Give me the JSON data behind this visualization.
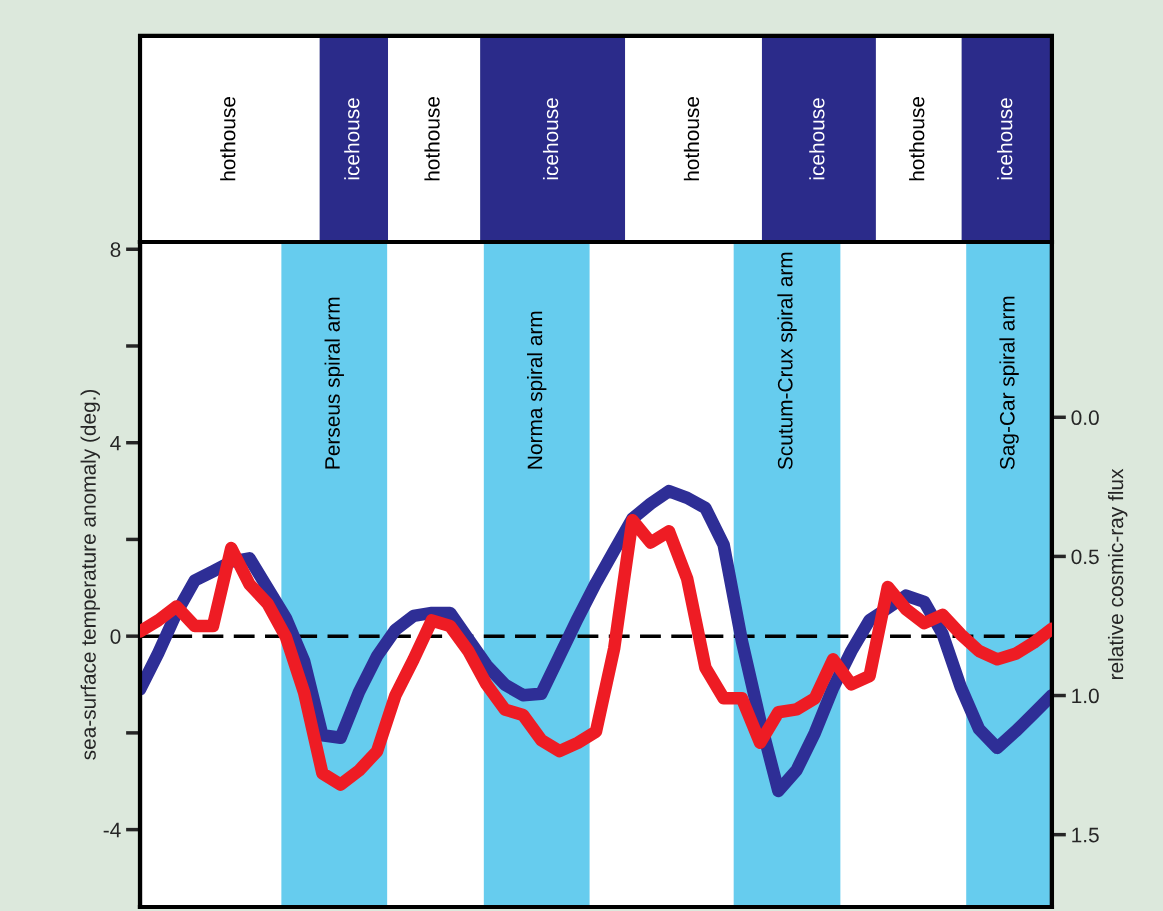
{
  "chart_data": {
    "type": "line",
    "ylabel": "sea-surface temperature anomaly (deg.)",
    "y2label": "relative cosmic-ray flux",
    "categories": [
      null,
      null,
      null,
      null,
      null,
      null,
      null,
      null,
      null,
      null,
      null,
      null,
      null,
      null,
      null,
      null,
      null,
      null,
      null,
      null,
      null,
      null,
      null,
      null,
      null,
      null,
      null,
      null,
      null,
      null,
      null,
      null,
      null,
      null,
      null,
      null,
      null,
      null,
      null,
      null,
      null,
      null,
      null,
      null,
      null,
      null,
      null,
      null,
      null,
      null,
      null
    ],
    "ylim": [
      -5.6,
      8.15
    ],
    "yticks": [
      -4,
      {
        "value": -2,
        "label": null
      },
      0,
      {
        "value": 2,
        "label": null
      },
      4,
      {
        "value": 6,
        "label": null
      },
      8
    ],
    "y2lim": [
      1.76,
      -0.63
    ],
    "y2ticks": [
      {
        "value": 0,
        "label": "0.0"
      },
      {
        "value": 0.5,
        "label": "0.5"
      },
      {
        "value": 1.0,
        "label": "1.0"
      },
      {
        "value": 1.5,
        "label": "1.5"
      }
    ],
    "grid": false,
    "legend": false,
    "line_style": "solid",
    "marker": "none",
    "series": [
      {
        "color": "#2e2e96",
        "values": [
          -1.1,
          -0.35,
          0.48,
          1.15,
          1.34,
          1.54,
          1.61,
          0.99,
          0.37,
          -0.52,
          -2.05,
          -2.1,
          -1.16,
          -0.41,
          0.13,
          0.42,
          0.48,
          0.48,
          -0.06,
          -0.6,
          -1.0,
          -1.22,
          -1.19,
          -0.41,
          0.37,
          1.1,
          1.77,
          2.43,
          2.74,
          3.0,
          2.86,
          2.65,
          1.89,
          -0.1,
          -1.74,
          -3.2,
          -2.77,
          -2.0,
          -1.07,
          -0.31,
          0.33,
          0.58,
          0.84,
          0.71,
          0.05,
          -1.05,
          -1.92,
          -2.31,
          -1.97,
          -1.6,
          -1.22
        ]
      },
      {
        "color": "#ee1c24",
        "axis": "y2",
        "values": [
          0.77,
          0.73,
          0.68,
          0.75,
          0.75,
          0.47,
          0.6,
          0.67,
          0.79,
          0.99,
          1.28,
          1.32,
          1.27,
          1.2,
          1.0,
          0.87,
          0.73,
          0.75,
          0.84,
          0.96,
          1.05,
          1.07,
          1.16,
          1.2,
          1.17,
          1.13,
          0.83,
          0.37,
          0.45,
          0.41,
          0.58,
          0.9,
          1.01,
          1.01,
          1.17,
          1.06,
          1.05,
          1.01,
          0.87,
          0.96,
          0.93,
          0.61,
          0.69,
          0.74,
          0.71,
          0.78,
          0.84,
          0.87,
          0.85,
          0.81,
          0.76
        ]
      }
    ],
    "ref_lines": [
      {
        "axis": "y",
        "value": 0,
        "color": "#000000",
        "line_style": "dashed"
      }
    ],
    "annotations": [
      "Perseus spiral arm",
      "Norma spiral arm",
      "Scutum-Crux spiral arm",
      "Sag-Car spiral arm",
      "hothouse",
      "icehouse",
      "hothouse",
      "icehouse",
      "hothouse",
      "icehouse",
      "hothouse",
      "icehouse"
    ]
  }
}
